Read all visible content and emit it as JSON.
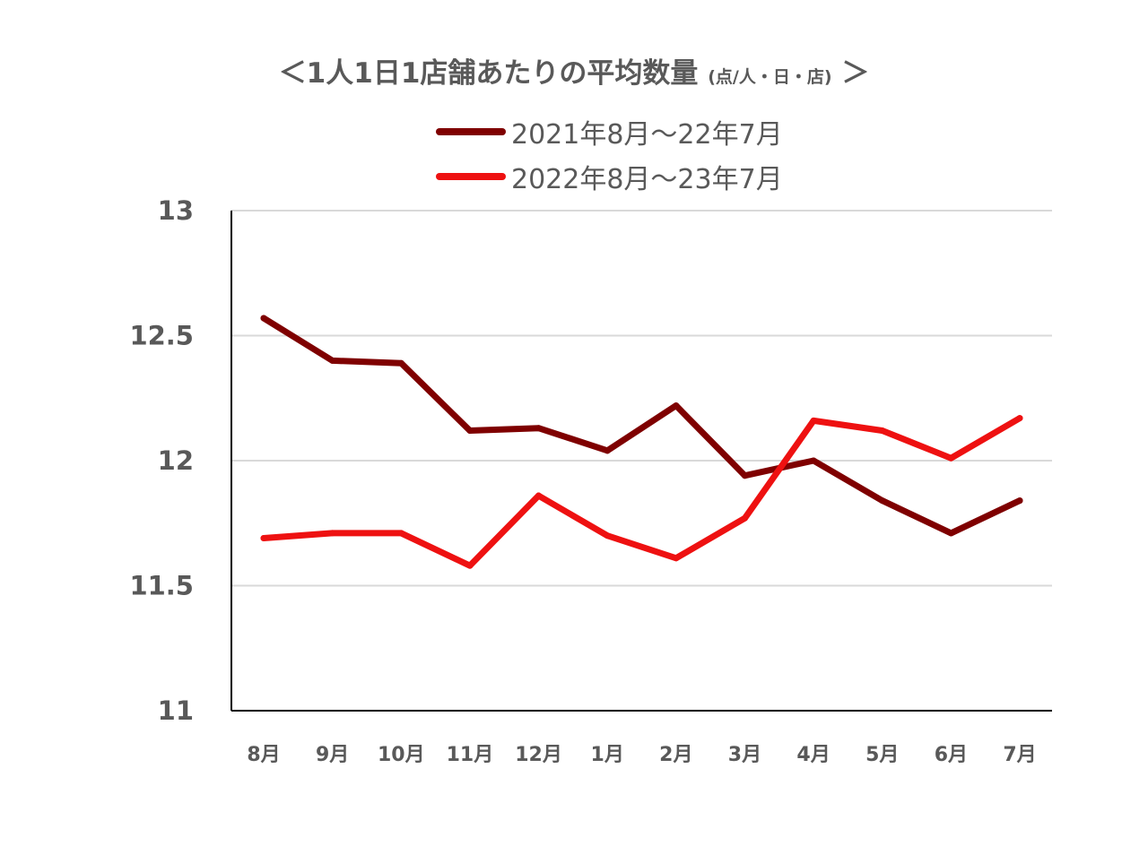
{
  "chart_data": {
    "type": "line",
    "title_main": "＜1人1日1店舗あたりの平均数量",
    "title_unit": "(点/人・日・店)",
    "title_close": "＞",
    "categories": [
      "8月",
      "9月",
      "10月",
      "11月",
      "12月",
      "1月",
      "2月",
      "3月",
      "4月",
      "5月",
      "6月",
      "7月"
    ],
    "series": [
      {
        "name": "2021年8月～22年7月",
        "color": "#7f0000",
        "values": [
          12.57,
          12.4,
          12.39,
          12.12,
          12.13,
          12.04,
          12.22,
          11.94,
          12.0,
          11.84,
          11.71,
          11.84
        ]
      },
      {
        "name": "2022年8月～23年7月",
        "color": "#ee1111",
        "values": [
          11.69,
          11.71,
          11.71,
          11.58,
          11.86,
          11.7,
          11.61,
          11.77,
          12.16,
          12.12,
          12.01,
          12.17
        ]
      }
    ],
    "ylim": [
      11,
      13
    ],
    "yticks": [
      "11",
      "11.5",
      "12",
      "12.5",
      "13"
    ],
    "grid": true,
    "legend": "top-center",
    "xlabel": "",
    "ylabel": ""
  }
}
